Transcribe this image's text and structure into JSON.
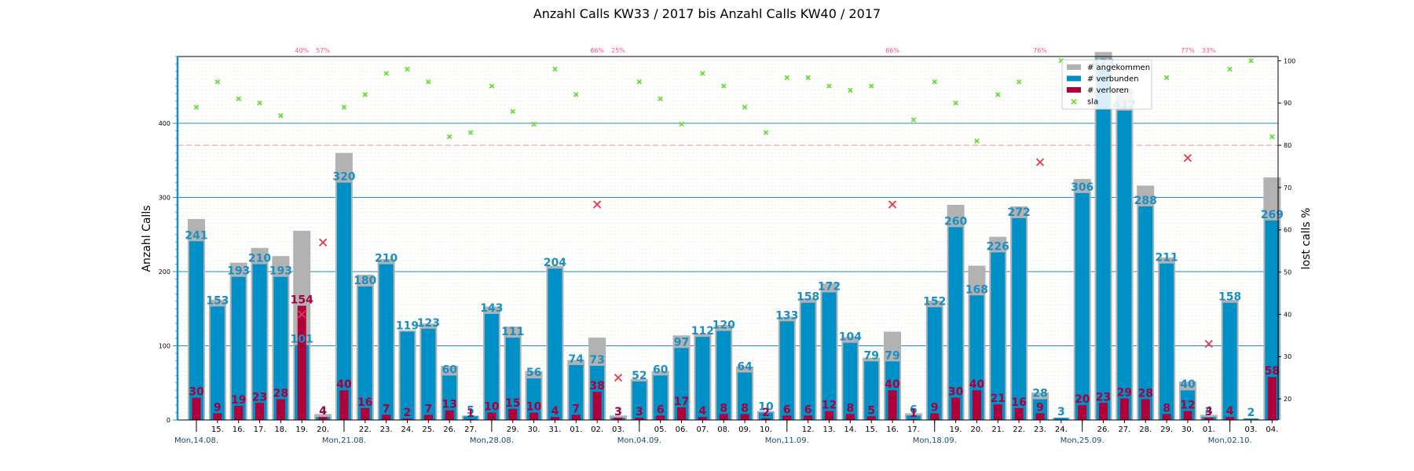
{
  "chart_data": {
    "type": "bar",
    "title": "Anzahl Calls KW33 / 2017 bis Anzahl Calls KW40 / 2017",
    "ylabel": "Anzahl Calls",
    "y2label": "lost calls %",
    "ylim": [
      0,
      490
    ],
    "y2lim": [
      15,
      101
    ],
    "yticks": [
      0,
      100,
      200,
      300,
      400
    ],
    "y2ticks": [
      20,
      30,
      40,
      50,
      60,
      70,
      80,
      90,
      100
    ],
    "sla_threshold_pct": 80,
    "legend_position": "top-right",
    "colors": {
      "angekommen": "#b2b2b2",
      "verbunden": "#0090c8",
      "verloren": "#b0003a",
      "sla": "#66dd33",
      "lost": "#e8384f",
      "threshold": "#ff9999",
      "axis": "#1a8fc4"
    },
    "categories": [
      "14.",
      "15.",
      "16.",
      "17.",
      "18.",
      "19.",
      "20.",
      "21.",
      "22.",
      "23.",
      "24.",
      "25.",
      "26.",
      "27.",
      "28.",
      "29.",
      "30.",
      "31.",
      "01.",
      "02.",
      "03.",
      "04.",
      "05.",
      "06.",
      "07.",
      "08.",
      "09.",
      "10.",
      "11.",
      "12.",
      "13.",
      "14.",
      "15.",
      "16.",
      "17.",
      "18.",
      "19.",
      "20.",
      "21.",
      "22.",
      "23.",
      "24.",
      "25.",
      "26.",
      "27.",
      "28.",
      "29.",
      "30.",
      "01.",
      "02.",
      "03.",
      "04."
    ],
    "tick_labels": [
      "",
      "15.",
      "16.",
      "17.",
      "18.",
      "19.",
      "20.",
      "",
      "22.",
      "23.",
      "24.",
      "25.",
      "26.",
      "27.",
      "",
      "29.",
      "30.",
      "31.",
      "01.",
      "02.",
      "03.",
      "",
      "05.",
      "06.",
      "07.",
      "08.",
      "09.",
      "10.",
      "",
      "12.",
      "13.",
      "14.",
      "15.",
      "16.",
      "17.",
      "",
      "19.",
      "20.",
      "21.",
      "22.",
      "23.",
      "24.",
      "",
      "26.",
      "27.",
      "28.",
      "29.",
      "30.",
      "01.",
      "",
      "03.",
      "04."
    ],
    "week_labels": [
      {
        "index": 0,
        "label": "Mon,14.08."
      },
      {
        "index": 7,
        "label": "Mon,21.08."
      },
      {
        "index": 14,
        "label": "Mon,28.08."
      },
      {
        "index": 21,
        "label": "Mon,04.09."
      },
      {
        "index": 28,
        "label": "Mon,11.09."
      },
      {
        "index": 35,
        "label": "Mon,18.09."
      },
      {
        "index": 42,
        "label": "Mon,25.09."
      },
      {
        "index": 49,
        "label": "Mon,02.10."
      }
    ],
    "series": [
      {
        "name": "# angekommen",
        "values": [
          271,
          162,
          212,
          232,
          221,
          255,
          8,
          360,
          196,
          217,
          121,
          130,
          73,
          6,
          153,
          126,
          66,
          208,
          81,
          111,
          6,
          55,
          66,
          114,
          116,
          128,
          72,
          12,
          139,
          164,
          184,
          112,
          84,
          119,
          9,
          161,
          290,
          208,
          247,
          288,
          37,
          3,
          325,
          496,
          446,
          316,
          219,
          52,
          7,
          162,
          2,
          327
        ]
      },
      {
        "name": "# verbunden",
        "values": [
          241,
          153,
          193,
          210,
          193,
          101,
          4,
          320,
          180,
          210,
          119,
          123,
          60,
          5,
          143,
          111,
          56,
          204,
          74,
          73,
          3,
          52,
          60,
          97,
          112,
          120,
          64,
          10,
          133,
          158,
          172,
          104,
          79,
          79,
          6,
          152,
          260,
          168,
          226,
          272,
          28,
          3,
          306,
          473,
          417,
          288,
          211,
          40,
          4,
          158,
          2,
          269
        ]
      },
      {
        "name": "# verloren",
        "values": [
          30,
          9,
          19,
          23,
          28,
          154,
          4,
          40,
          16,
          7,
          2,
          7,
          13,
          1,
          10,
          15,
          10,
          4,
          7,
          38,
          3,
          3,
          6,
          17,
          4,
          8,
          8,
          2,
          6,
          6,
          12,
          8,
          5,
          40,
          1,
          9,
          30,
          40,
          21,
          16,
          9,
          0,
          20,
          23,
          29,
          28,
          8,
          12,
          3,
          4,
          0,
          58
        ]
      },
      {
        "name": "sla",
        "values": [
          89,
          95,
          91,
          90,
          87,
          null,
          null,
          89,
          92,
          97,
          98,
          95,
          82,
          83,
          94,
          88,
          85,
          98,
          92,
          null,
          null,
          95,
          91,
          85,
          97,
          94,
          89,
          83,
          96,
          96,
          94,
          93,
          94,
          null,
          86,
          95,
          90,
          81,
          92,
          95,
          null,
          100,
          null,
          null,
          null,
          null,
          96,
          null,
          null,
          98,
          100,
          82
        ]
      },
      {
        "name": "lost calls %",
        "values": [
          null,
          null,
          null,
          null,
          null,
          40,
          57,
          null,
          null,
          null,
          null,
          null,
          null,
          null,
          null,
          null,
          null,
          null,
          null,
          66,
          25,
          null,
          null,
          null,
          null,
          null,
          null,
          null,
          null,
          null,
          null,
          null,
          null,
          66,
          null,
          null,
          null,
          null,
          null,
          null,
          76,
          null,
          null,
          null,
          null,
          null,
          null,
          77,
          33,
          null,
          null,
          null
        ]
      }
    ],
    "pct_top_labels": [
      {
        "index": 5,
        "label": "40%"
      },
      {
        "index": 6,
        "label": "57%"
      },
      {
        "index": 19,
        "label": "66%"
      },
      {
        "index": 20,
        "label": "25%"
      },
      {
        "index": 33,
        "label": "66%"
      },
      {
        "index": 40,
        "label": "76%"
      },
      {
        "index": 47,
        "label": "77%"
      },
      {
        "index": 48,
        "label": "33%"
      }
    ]
  }
}
